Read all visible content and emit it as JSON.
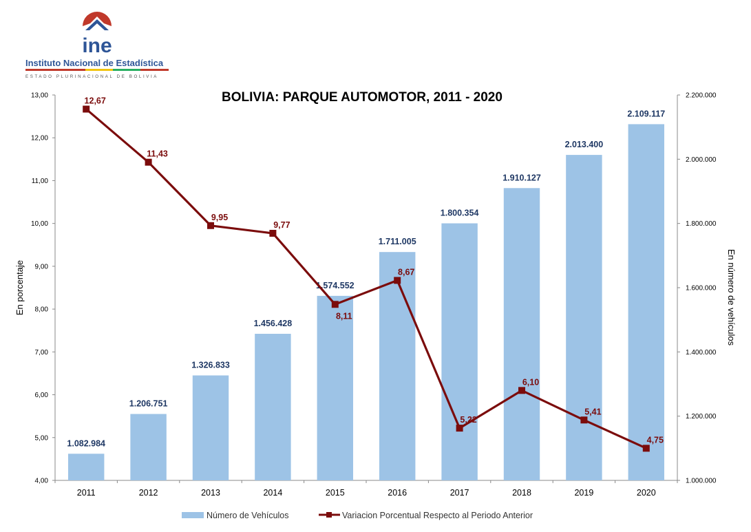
{
  "logo": {
    "wordmark": "ine",
    "name": "Instituto Nacional de Estadística",
    "subtitle": "ESTADO PLURINACIONAL DE BOLIVIA"
  },
  "colors": {
    "bar": "#9DC3E6",
    "line": "#7B0C0C",
    "title": "#1F3864",
    "bar_label": "#1F3864",
    "logo_red": "#C0392B",
    "logo_blue": "#2E5597"
  },
  "chart_data": {
    "type": "bar+line",
    "title": "BOLIVIA: PARQUE AUTOMOTOR, 2011 - 2020",
    "categories": [
      "2011",
      "2012",
      "2013",
      "2014",
      "2015",
      "2016",
      "2017",
      "2018",
      "2019",
      "2020"
    ],
    "series": [
      {
        "name": "Número de Vehículos",
        "type": "bar",
        "axis": "right",
        "values": [
          1082984,
          1206751,
          1326833,
          1456428,
          1574552,
          1711005,
          1800354,
          1910127,
          2013400,
          2109117
        ],
        "labels": [
          "1.082.984",
          "1.206.751",
          "1.326.833",
          "1.456.428",
          "1.574.552",
          "1.711.005",
          "1.800.354",
          "1.910.127",
          "2.013.400",
          "2.109.117"
        ]
      },
      {
        "name": "Variacion Porcentual Respecto al Periodo Anterior",
        "type": "line",
        "axis": "left",
        "values": [
          12.67,
          11.43,
          9.95,
          9.77,
          8.11,
          8.67,
          5.22,
          6.1,
          5.41,
          4.75
        ],
        "labels": [
          "12,67",
          "11,43",
          "9,95",
          "9,77",
          "8,11",
          "8,67",
          "5,22",
          "6,10",
          "5,41",
          "4,75"
        ]
      }
    ],
    "y_left": {
      "label": "En porcentaje",
      "range": [
        4,
        13
      ],
      "ticks": [
        "4,00",
        "5,00",
        "6,00",
        "7,00",
        "8,00",
        "9,00",
        "10,00",
        "11,00",
        "12,00",
        "13,00"
      ]
    },
    "y_right": {
      "label": "En número de vehículos",
      "range": [
        1000000,
        2200000
      ],
      "ticks": [
        "1.000.000",
        "1.200.000",
        "1.400.000",
        "1.600.000",
        "1.800.000",
        "2.000.000",
        "2.200.000"
      ]
    },
    "grid": false,
    "legend_position": "bottom"
  }
}
